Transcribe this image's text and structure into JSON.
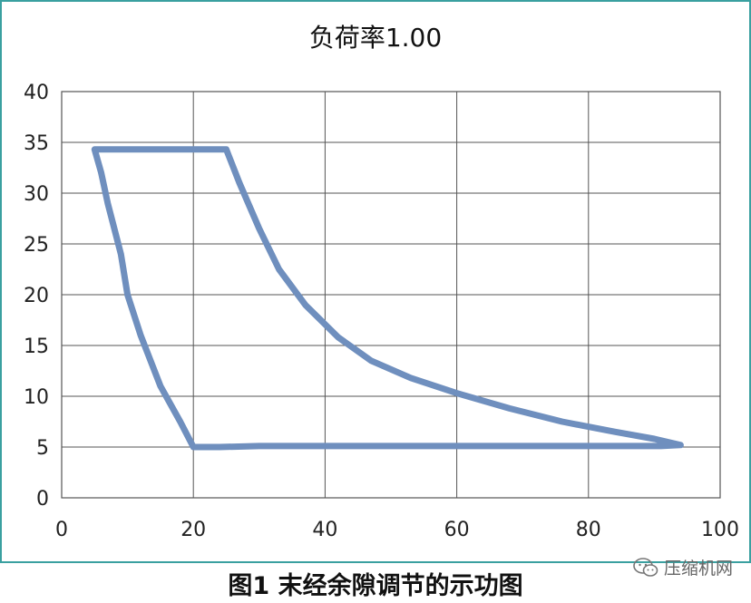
{
  "chart_data": {
    "type": "line",
    "title": "负荷率1.00",
    "xlabel": "",
    "ylabel": "",
    "xlim": [
      0,
      100
    ],
    "ylim": [
      0,
      40
    ],
    "x_ticks": [
      0,
      20,
      40,
      60,
      80,
      100
    ],
    "y_ticks": [
      0,
      5,
      10,
      15,
      20,
      25,
      30,
      35,
      40
    ],
    "grid": true,
    "legend": "none",
    "series": [
      {
        "color": "#6f8fbe",
        "x": [
          5,
          25,
          27,
          30,
          33,
          37,
          42,
          47,
          53,
          60,
          68,
          76,
          84,
          90,
          94,
          91,
          60,
          30,
          24,
          20,
          18,
          15,
          12,
          10,
          9,
          7,
          6,
          5
        ],
        "y": [
          34.3,
          34.3,
          31,
          26.5,
          22.5,
          19,
          15.8,
          13.5,
          11.8,
          10.3,
          8.8,
          7.5,
          6.5,
          5.8,
          5.2,
          5.1,
          5.1,
          5.1,
          5,
          5,
          7.5,
          11,
          16,
          20,
          24,
          29,
          32,
          34.3
        ]
      }
    ]
  },
  "caption": "图1 末经余隙调节的示功图",
  "watermark": {
    "text": "压缩机网",
    "icon": "wechat-icon"
  }
}
